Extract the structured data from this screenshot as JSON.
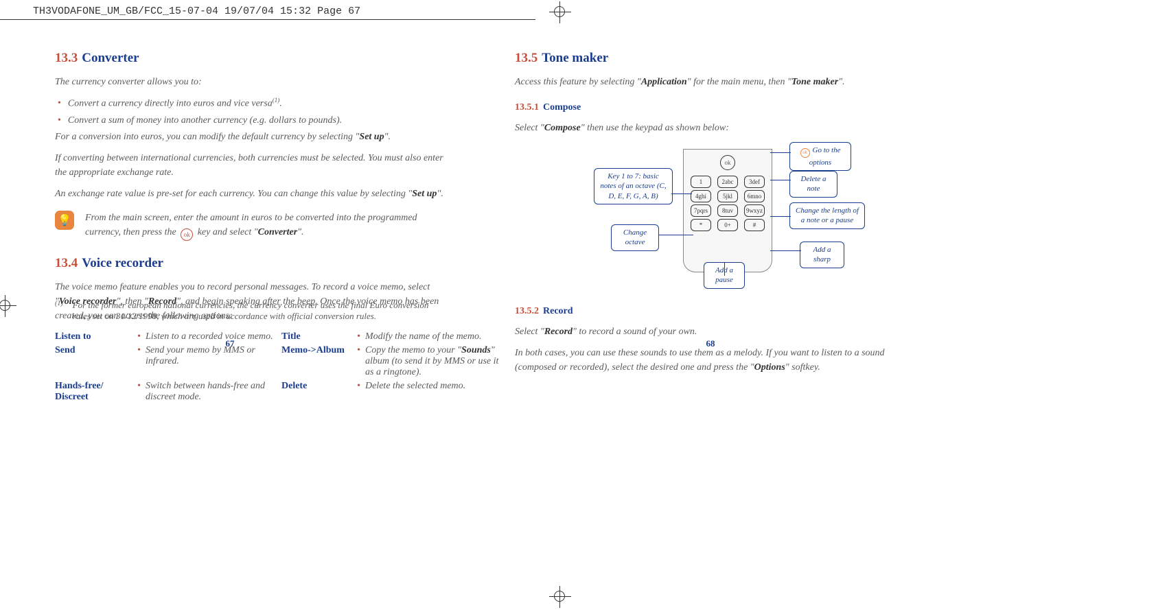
{
  "header": {
    "text": "TH3VODAFONE_UM_GB/FCC_15-07-04  19/07/04  15:32  Page 67"
  },
  "colors": {
    "accent_orange": "#c94e3a",
    "heading_blue": "#1a3d8f",
    "body_text": "#5a5a5a",
    "tip_bg": "#e8853f"
  },
  "left": {
    "sec133_num": "13.3",
    "sec133_title": "Converter",
    "p133_1": "The currency converter allows you to:",
    "b133_1a": "Convert a currency directly into euros and vice versa",
    "b133_1a_sup": "(1)",
    "b133_1a_end": ".",
    "b133_1b": "Convert a sum of money into another currency (e.g. dollars to pounds).",
    "p133_2a": "For a conversion into euros, you can modify the default currency by selecting \"",
    "p133_2b": "Set up",
    "p133_2c": "\".",
    "p133_3": "If converting between international currencies, both currencies must be selected. You must also enter the appropriate exchange rate.",
    "p133_4a": "An exchange rate value is pre-set for each currency. You can change this value by selecting \"",
    "p133_4b": "Set up",
    "p133_4c": "\".",
    "tip_a": "From the main screen, enter the amount in euros to be converted into the programmed currency, then press the ",
    "tip_ok": "ok",
    "tip_b": " key and select \"",
    "tip_bold": "Converter",
    "tip_c": "\".",
    "sec134_num": "13.4",
    "sec134_title": "Voice recorder",
    "p134_1a": "The voice memo feature enables you to record personal messages. To record a voice memo, select \"",
    "p134_1b": "Voice recorder",
    "p134_1c": "\", then \"",
    "p134_1d": "Record",
    "p134_1e": "\", and begin speaking after the beep. Once the voice memo has been created, you can access the following options:",
    "opts": {
      "listen_label": "Listen to",
      "listen_desc": "Listen to a recorded voice memo.",
      "send_label": "Send",
      "send_desc": "Send your memo by MMS or infrared.",
      "hands_label": "Hands-free/ Discreet",
      "hands_desc": "Switch between hands-free and discreet mode.",
      "title_label": "Title",
      "title_desc": "Modify the name of the memo.",
      "album_label": "Memo->Album",
      "album_desc_a": "Copy the memo to your \"",
      "album_desc_b": "Sounds",
      "album_desc_c": "\" album (to send it by MMS or use it as a ringtone).",
      "delete_label": "Delete",
      "delete_desc": "Delete the selected memo."
    },
    "footnote_mark": "(1)",
    "footnote_text": "For the former european national currencies, the currency converter uses the final Euro conversion rates set on 31/12/1998, which are used in accordance with official conversion rules.",
    "page_num": "67"
  },
  "right": {
    "sec135_num": "13.5",
    "sec135_title": "Tone maker",
    "p135_1a": "Access this feature by selecting \"",
    "p135_1b": "Application",
    "p135_1c": "\" for the main menu, then \"",
    "p135_1d": "Tone maker",
    "p135_1e": "\".",
    "sub1351_num": "13.5.1",
    "sub1351_title": "Compose",
    "p1351_1a": "Select \"",
    "p1351_1b": "Compose",
    "p1351_1c": "\" then use the keypad as shown below:",
    "callouts": {
      "keys": "Key 1 to 7: basic notes of an octave (C, D, E, F, G, A, B)",
      "change_octave": "Change octave",
      "add_pause": "Add a pause",
      "goto": "Go to the options",
      "goto_ok": "ok",
      "delete": "Delete a note",
      "change_len": "Change the length of a note or a pause",
      "add_sharp": "Add a sharp"
    },
    "keypad": [
      [
        "1",
        "2abc",
        "3def"
      ],
      [
        "4ghi",
        "5jkl",
        "6mno"
      ],
      [
        "7pqrs",
        "8tuv",
        "9wxyz"
      ],
      [
        "*",
        "0+",
        "#"
      ]
    ],
    "sub1352_num": "13.5.2",
    "sub1352_title": "Record",
    "p1352_1a": "Select \"",
    "p1352_1b": "Record",
    "p1352_1c": "\" to record a sound of your own.",
    "p1352_2a": "In both cases, you can use these sounds to use them as a melody. If you want to listen to a sound (composed or recorded), select the desired one and press the \"",
    "p1352_2b": "Options",
    "p1352_2c": "\" softkey.",
    "page_num": "68"
  }
}
